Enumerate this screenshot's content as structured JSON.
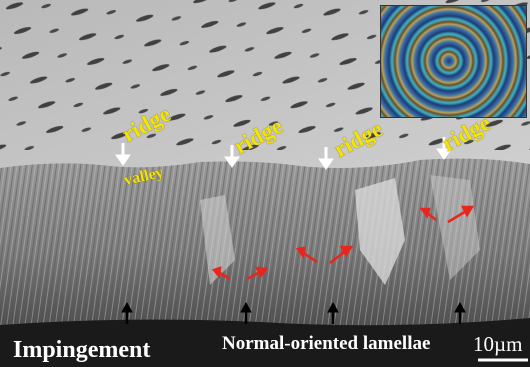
{
  "labels": {
    "ridge": "ridge",
    "valley": "valley",
    "impingement": "Impingement",
    "normal_oriented": "Normal-oriented lamellae",
    "scale": "10µm"
  },
  "colors": {
    "label_yellow": "#f4e400",
    "arrow_red": "#e8261e",
    "arrow_white": "#ffffff",
    "arrow_black": "#000000"
  },
  "icons": {
    "white_arrow": "arrow-down-icon",
    "black_arrow": "arrow-up-icon",
    "red_arrow": "arrow-diagonal-icon"
  }
}
